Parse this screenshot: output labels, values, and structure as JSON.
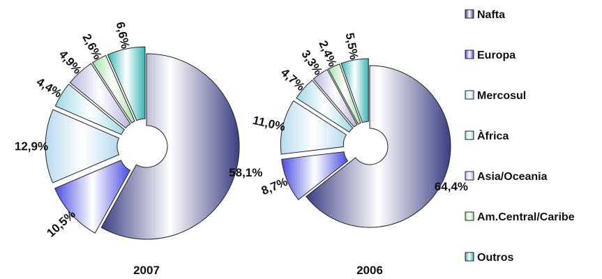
{
  "chart_data": {
    "type": "pie",
    "legend": {
      "placement": "right",
      "entries": [
        {
          "name": "Nafta",
          "color": "#3b3f82"
        },
        {
          "name": "Europa",
          "color": "#4a4de0"
        },
        {
          "name": "Mercosul",
          "color": "#b7d9ee"
        },
        {
          "name": "Àfrica",
          "color": "#9ed8e6"
        },
        {
          "name": "Asia/Oceania",
          "color": "#b6b6df"
        },
        {
          "name": "Am.Central/Caribe",
          "color": "#a5e0a8"
        },
        {
          "name": "Outros",
          "color": "#39b5b5"
        }
      ]
    },
    "pies": [
      {
        "title": "2007",
        "values": [
          58.1,
          10.5,
          12.9,
          4.4,
          4.9,
          2.6,
          6.6
        ],
        "labels": [
          "58,1%",
          "10,5%",
          "12,9%",
          "4,4%",
          "4,9%",
          "2,6%",
          "6,6%"
        ]
      },
      {
        "title": "2006",
        "values": [
          64.4,
          8.7,
          11.0,
          4.7,
          3.3,
          2.4,
          5.5
        ],
        "labels": [
          "64,4%",
          "8,7%",
          "11,0%",
          "4,7%",
          "3,3%",
          "2,4%",
          "5,5%"
        ]
      }
    ]
  }
}
